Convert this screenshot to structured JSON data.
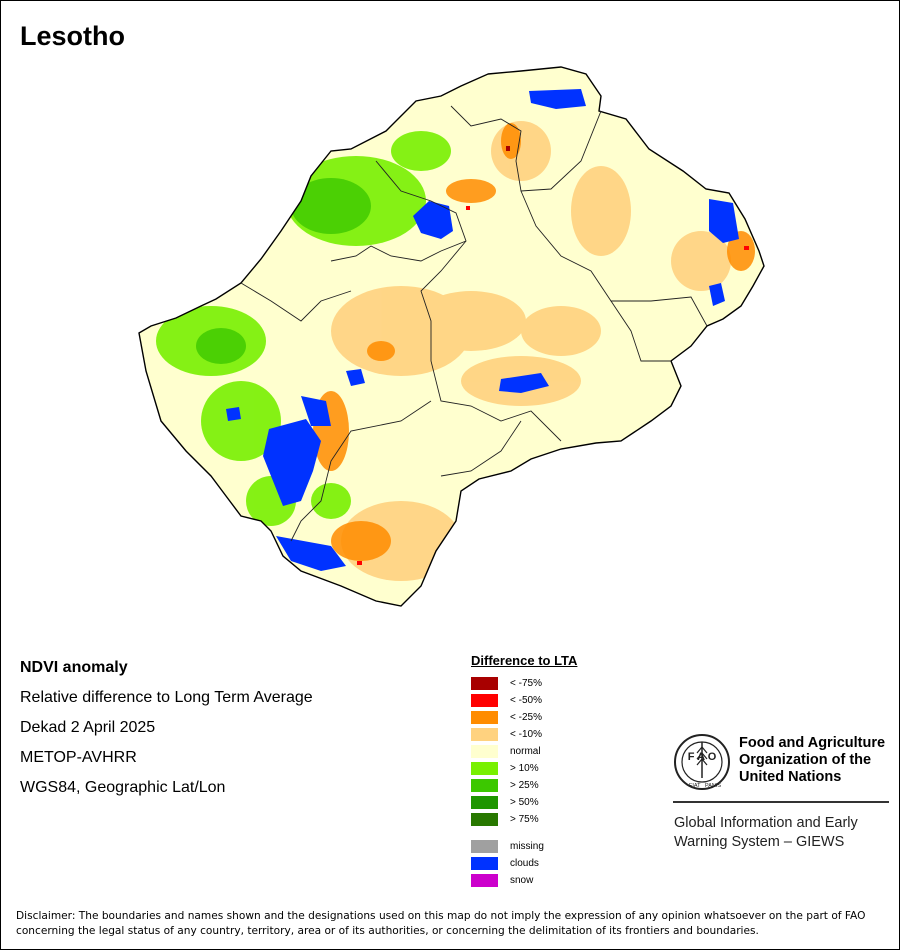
{
  "title": "Lesotho",
  "info": {
    "product": "NDVI anomaly",
    "description": "Relative difference to Long Term Average",
    "period": "Dekad 2 April 2025",
    "sensor": "METOP-AVHRR",
    "projection": "WGS84, Geographic Lat/Lon"
  },
  "legend": {
    "title": "Difference to LTA",
    "classes": [
      {
        "label": "< -75%",
        "color": "#a80000"
      },
      {
        "label": "< -50%",
        "color": "#ff0000"
      },
      {
        "label": "< -25%",
        "color": "#ff8c00"
      },
      {
        "label": "< -10%",
        "color": "#ffd27f"
      },
      {
        "label": "normal",
        "color": "#ffffcf"
      },
      {
        "label": "> 10%",
        "color": "#78f000"
      },
      {
        "label": "> 25%",
        "color": "#3cc800"
      },
      {
        "label": "> 50%",
        "color": "#1e9600"
      },
      {
        "label": "> 75%",
        "color": "#287800"
      }
    ],
    "extra": [
      {
        "label": "missing",
        "color": "#a0a0a0"
      },
      {
        "label": "clouds",
        "color": "#0032ff"
      },
      {
        "label": "snow",
        "color": "#cc00cc"
      }
    ]
  },
  "logo": {
    "org_line1": "Food and Agriculture",
    "org_line2": "Organization of the",
    "org_line3": "United Nations",
    "giews_line1": "Global Information and Early",
    "giews_line2": "Warning System – GIEWS",
    "emblem_fiat": "FIAT",
    "emblem_panis": "PANIS"
  },
  "disclaimer": "Disclaimer: The boundaries and names shown and the designations used on this map do not imply the expression of any opinion whatsoever on the part of FAO concerning the legal status of any country, territory, area or of its authorities, or concerning the delimitation of its frontiers and boundaries."
}
